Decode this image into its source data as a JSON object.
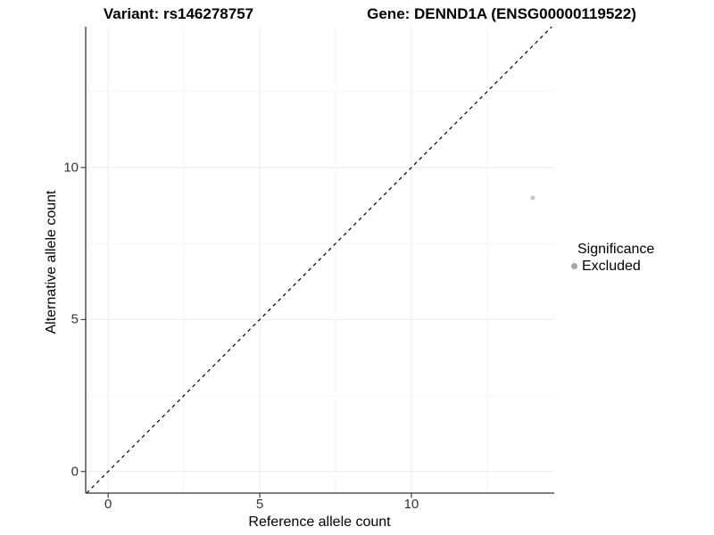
{
  "header": {
    "variant_title": "Variant: rs146278757",
    "gene_title": "Gene: DENND1A (ENSG00000119522)"
  },
  "chart_data": {
    "type": "scatter",
    "xlabel": "Reference allele count",
    "ylabel": "Alternative allele count",
    "xlim": [
      -0.74,
      14.71
    ],
    "ylim": [
      -0.71,
      14.63
    ],
    "x_ticks": [
      0,
      5,
      10
    ],
    "y_ticks": [
      0,
      5,
      10
    ],
    "x_minor_ticks": [
      2.5,
      7.5,
      12.5
    ],
    "y_minor_ticks": [
      2.5,
      7.5,
      12.5
    ],
    "grid": true,
    "identity_line": {
      "style": "dashed",
      "color": "#000000",
      "slope": 1,
      "intercept": 0
    },
    "series": [
      {
        "name": "Excluded",
        "color": "#c6c6c6",
        "points": [
          {
            "x": 14,
            "y": 9
          }
        ]
      }
    ],
    "legend": {
      "title": "Significance",
      "position": "right",
      "entries": [
        {
          "label": "Excluded",
          "color": "#a6a6a6"
        }
      ]
    },
    "colors": {
      "axis_line": "#333333",
      "tick_mark": "#333333",
      "tick_label": "#333333",
      "grid_major": "#ebebeb",
      "grid_minor": "#f5f5f5",
      "background": "#ffffff"
    }
  }
}
